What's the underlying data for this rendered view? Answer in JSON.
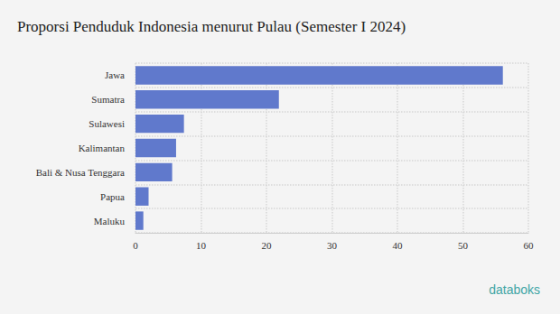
{
  "chart_data": {
    "type": "bar",
    "title": "Proporsi Penduduk Indonesia menurut Pulau (Semester I 2024)",
    "orientation": "horizontal",
    "categories": [
      "Jawa",
      "Sumatra",
      "Sulawesi",
      "Kalimantan",
      "Bali & Nusa Tenggara",
      "Papua",
      "Maluku"
    ],
    "values": [
      56.1,
      21.9,
      7.4,
      6.2,
      5.6,
      2.0,
      1.2
    ],
    "color": "#6079cc",
    "xlim": [
      0,
      60
    ],
    "xticks": [
      0,
      10,
      20,
      30,
      40,
      50,
      60
    ],
    "grid": true,
    "annotations": [
      "databoks"
    ]
  }
}
